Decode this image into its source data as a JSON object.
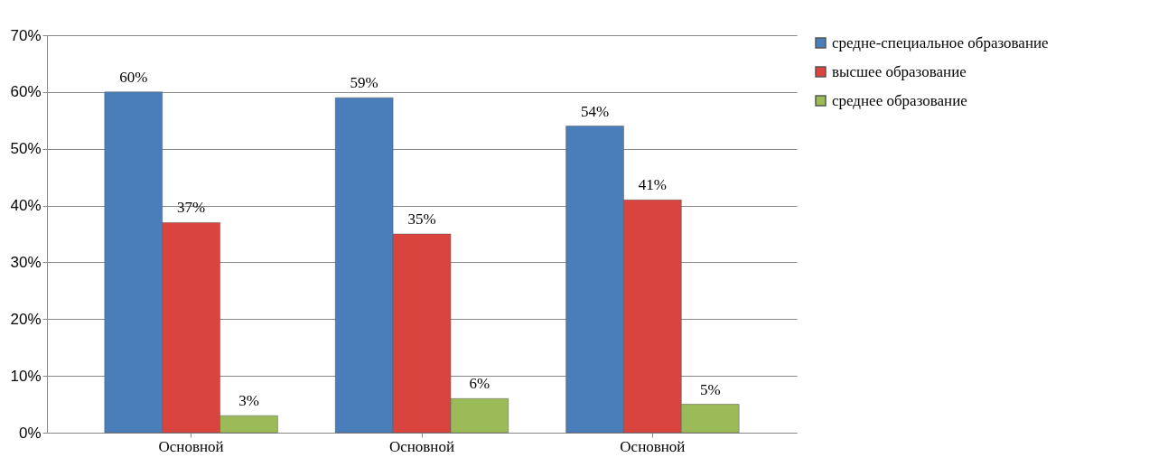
{
  "chart_data": {
    "type": "bar",
    "categories": [
      "Основной",
      "Основной",
      "Основной"
    ],
    "series": [
      {
        "name": "средне-специальное образование",
        "color": "#4a7ebb",
        "values": [
          60,
          59,
          54
        ],
        "value_labels": [
          "60%",
          "59%",
          "54%"
        ]
      },
      {
        "name": "высшее образование",
        "color": "#d9443f",
        "values": [
          37,
          35,
          41
        ],
        "value_labels": [
          "37%",
          "35%",
          "41%"
        ]
      },
      {
        "name": "среднее образование",
        "color": "#9bbb59",
        "values": [
          3,
          6,
          5
        ],
        "value_labels": [
          "3%",
          "6%",
          "5%"
        ]
      }
    ],
    "ylim": [
      0,
      70
    ],
    "yticks": [
      {
        "value": 0,
        "label": "0%"
      },
      {
        "value": 10,
        "label": "10%"
      },
      {
        "value": 20,
        "label": "20%"
      },
      {
        "value": 30,
        "label": "30%"
      },
      {
        "value": 40,
        "label": "40%"
      },
      {
        "value": 50,
        "label": "50%"
      },
      {
        "value": 60,
        "label": "60%"
      },
      {
        "value": 70,
        "label": "70%"
      }
    ],
    "grid": "y",
    "legend": "right"
  }
}
